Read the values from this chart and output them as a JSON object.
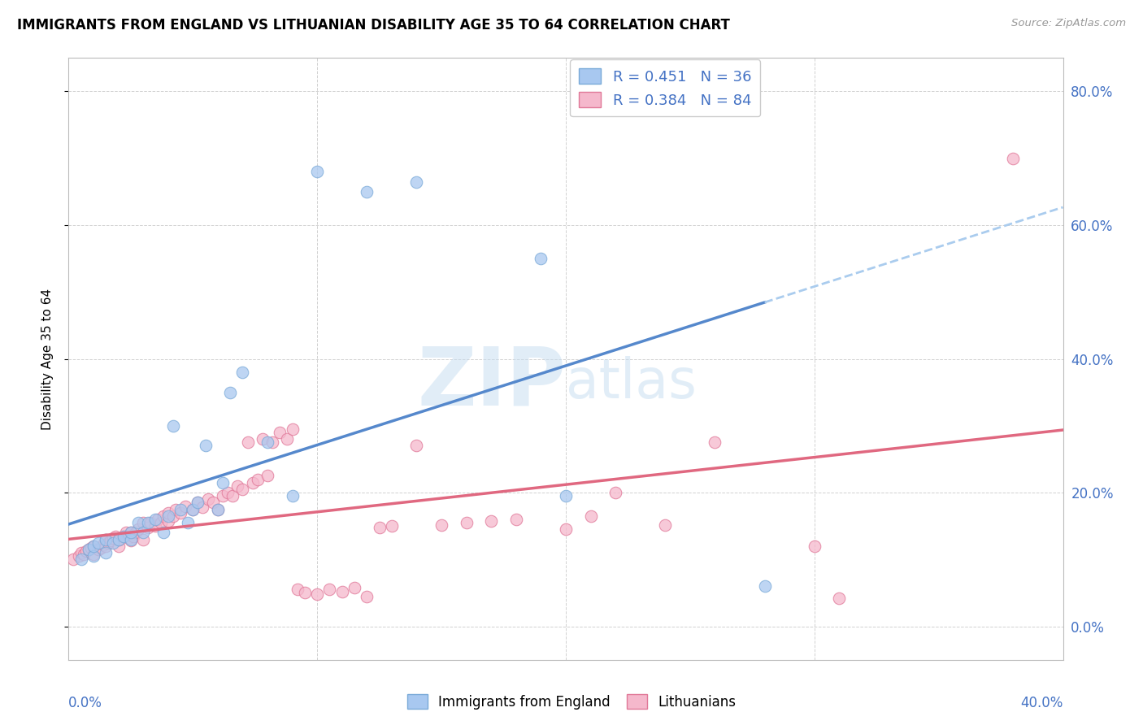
{
  "title": "IMMIGRANTS FROM ENGLAND VS LITHUANIAN DISABILITY AGE 35 TO 64 CORRELATION CHART",
  "source": "Source: ZipAtlas.com",
  "ylabel": "Disability Age 35 to 64",
  "ytick_labels": [
    "0.0%",
    "20.0%",
    "40.0%",
    "60.0%",
    "80.0%"
  ],
  "ytick_values": [
    0.0,
    0.2,
    0.4,
    0.6,
    0.8
  ],
  "xlim": [
    0.0,
    0.4
  ],
  "ylim": [
    -0.05,
    0.85
  ],
  "color_england": "#A8C8F0",
  "color_england_edge": "#7AAAD8",
  "color_lithuanian": "#F5B8CC",
  "color_lithuanian_edge": "#E07898",
  "color_england_line": "#5588CC",
  "color_lithuanian_line": "#E06880",
  "color_dashed_line": "#AACCEE",
  "watermark_color": "#C5DCF0",
  "england_scatter_x": [
    0.005,
    0.008,
    0.01,
    0.01,
    0.012,
    0.015,
    0.015,
    0.018,
    0.02,
    0.022,
    0.025,
    0.025,
    0.028,
    0.03,
    0.032,
    0.035,
    0.038,
    0.04,
    0.042,
    0.045,
    0.048,
    0.05,
    0.052,
    0.055,
    0.06,
    0.062,
    0.065,
    0.07,
    0.08,
    0.09,
    0.1,
    0.12,
    0.14,
    0.19,
    0.2,
    0.28
  ],
  "england_scatter_y": [
    0.1,
    0.115,
    0.105,
    0.12,
    0.125,
    0.11,
    0.13,
    0.125,
    0.13,
    0.135,
    0.13,
    0.14,
    0.155,
    0.14,
    0.155,
    0.16,
    0.14,
    0.165,
    0.3,
    0.175,
    0.155,
    0.175,
    0.185,
    0.27,
    0.175,
    0.215,
    0.35,
    0.38,
    0.275,
    0.195,
    0.68,
    0.65,
    0.665,
    0.55,
    0.195,
    0.06
  ],
  "lithuanian_scatter_x": [
    0.002,
    0.004,
    0.005,
    0.006,
    0.007,
    0.008,
    0.009,
    0.01,
    0.01,
    0.012,
    0.013,
    0.014,
    0.015,
    0.015,
    0.016,
    0.017,
    0.018,
    0.019,
    0.02,
    0.02,
    0.022,
    0.023,
    0.024,
    0.025,
    0.025,
    0.026,
    0.027,
    0.028,
    0.03,
    0.03,
    0.032,
    0.033,
    0.035,
    0.036,
    0.037,
    0.038,
    0.04,
    0.04,
    0.042,
    0.043,
    0.045,
    0.047,
    0.05,
    0.052,
    0.054,
    0.056,
    0.058,
    0.06,
    0.062,
    0.064,
    0.066,
    0.068,
    0.07,
    0.072,
    0.074,
    0.076,
    0.078,
    0.08,
    0.082,
    0.085,
    0.088,
    0.09,
    0.092,
    0.095,
    0.1,
    0.105,
    0.11,
    0.115,
    0.12,
    0.125,
    0.13,
    0.14,
    0.15,
    0.16,
    0.17,
    0.18,
    0.2,
    0.21,
    0.22,
    0.24,
    0.26,
    0.3,
    0.31,
    0.38
  ],
  "lithuanian_scatter_y": [
    0.1,
    0.105,
    0.11,
    0.108,
    0.112,
    0.115,
    0.118,
    0.108,
    0.12,
    0.115,
    0.118,
    0.122,
    0.12,
    0.13,
    0.125,
    0.128,
    0.132,
    0.135,
    0.12,
    0.13,
    0.135,
    0.14,
    0.132,
    0.128,
    0.14,
    0.135,
    0.14,
    0.145,
    0.13,
    0.155,
    0.148,
    0.155,
    0.15,
    0.16,
    0.155,
    0.165,
    0.158,
    0.17,
    0.165,
    0.175,
    0.17,
    0.18,
    0.175,
    0.185,
    0.178,
    0.19,
    0.185,
    0.175,
    0.195,
    0.2,
    0.195,
    0.21,
    0.205,
    0.275,
    0.215,
    0.22,
    0.28,
    0.225,
    0.275,
    0.29,
    0.28,
    0.295,
    0.055,
    0.05,
    0.048,
    0.055,
    0.052,
    0.058,
    0.045,
    0.148,
    0.15,
    0.27,
    0.152,
    0.155,
    0.158,
    0.16,
    0.145,
    0.165,
    0.2,
    0.152,
    0.275,
    0.12,
    0.042,
    0.7
  ]
}
